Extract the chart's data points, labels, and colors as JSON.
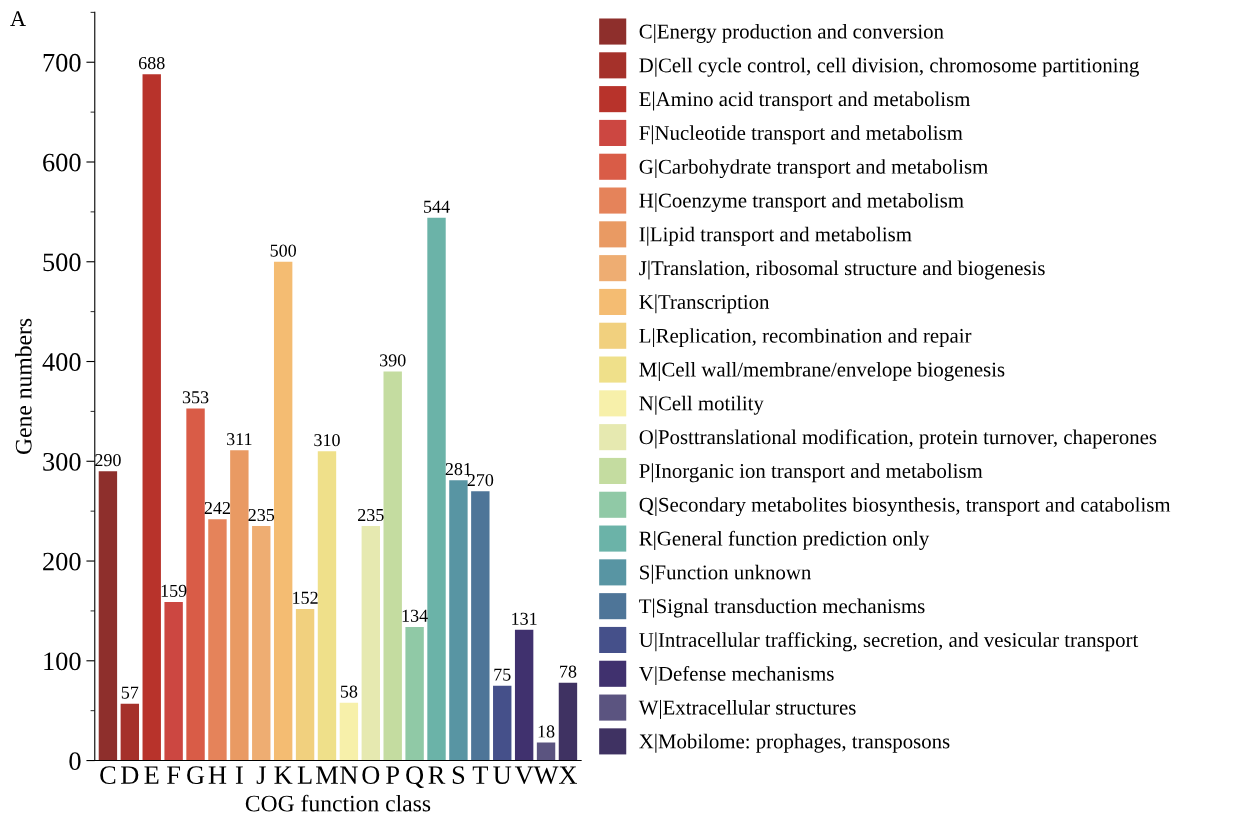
{
  "chart_data": {
    "type": "bar",
    "xlabel": "COG function class",
    "ylabel": "Gene numbers",
    "annotations": [
      "A"
    ],
    "categories": [
      "C",
      "D",
      "E",
      "F",
      "G",
      "H",
      "I",
      "J",
      "K",
      "L",
      "M",
      "N",
      "O",
      "P",
      "Q",
      "R",
      "S",
      "T",
      "U",
      "V",
      "W",
      "X"
    ],
    "series": [
      {
        "name": "C|Energy production and conversion",
        "color": "#8e2f2c",
        "values": [
          290,
          null,
          null,
          null,
          null,
          null,
          null,
          null,
          null,
          null,
          null,
          null,
          null,
          null,
          null,
          null,
          null,
          null,
          null,
          null,
          null,
          null
        ]
      },
      {
        "name": "D|Cell cycle control, cell division, chromosome partitioning",
        "color": "#a5312a",
        "values": [
          null,
          57,
          null,
          null,
          null,
          null,
          null,
          null,
          null,
          null,
          null,
          null,
          null,
          null,
          null,
          null,
          null,
          null,
          null,
          null,
          null,
          null
        ]
      },
      {
        "name": "E|Amino acid transport and metabolism",
        "color": "#b8332b",
        "values": [
          null,
          null,
          688,
          null,
          null,
          null,
          null,
          null,
          null,
          null,
          null,
          null,
          null,
          null,
          null,
          null,
          null,
          null,
          null,
          null,
          null,
          null
        ]
      },
      {
        "name": "F|Nucleotide transport and metabolism",
        "color": "#cc4741",
        "values": [
          null,
          null,
          null,
          159,
          null,
          null,
          null,
          null,
          null,
          null,
          null,
          null,
          null,
          null,
          null,
          null,
          null,
          null,
          null,
          null,
          null,
          null
        ]
      },
      {
        "name": "G|Carbohydrate transport and metabolism",
        "color": "#d95c47",
        "values": [
          null,
          null,
          null,
          null,
          353,
          null,
          null,
          null,
          null,
          null,
          null,
          null,
          null,
          null,
          null,
          null,
          null,
          null,
          null,
          null,
          null,
          null
        ]
      },
      {
        "name": "H|Coenzyme transport and metabolism",
        "color": "#e5835a",
        "values": [
          null,
          null,
          null,
          null,
          null,
          242,
          null,
          null,
          null,
          null,
          null,
          null,
          null,
          null,
          null,
          null,
          null,
          null,
          null,
          null,
          null,
          null
        ]
      },
      {
        "name": "I|Lipid transport and metabolism",
        "color": "#e99a63",
        "values": [
          null,
          null,
          null,
          null,
          null,
          null,
          311,
          null,
          null,
          null,
          null,
          null,
          null,
          null,
          null,
          null,
          null,
          null,
          null,
          null,
          null,
          null
        ]
      },
      {
        "name": "J|Translation, ribosomal structure and biogenesis",
        "color": "#eead72",
        "values": [
          null,
          null,
          null,
          null,
          null,
          null,
          null,
          235,
          null,
          null,
          null,
          null,
          null,
          null,
          null,
          null,
          null,
          null,
          null,
          null,
          null,
          null
        ]
      },
      {
        "name": "K|Transcription",
        "color": "#f4bc72",
        "values": [
          null,
          null,
          null,
          null,
          null,
          null,
          null,
          null,
          500,
          null,
          null,
          null,
          null,
          null,
          null,
          null,
          null,
          null,
          null,
          null,
          null,
          null
        ]
      },
      {
        "name": "L|Replication, recombination and repair",
        "color": "#f1d07e",
        "values": [
          null,
          null,
          null,
          null,
          null,
          null,
          null,
          null,
          null,
          152,
          null,
          null,
          null,
          null,
          null,
          null,
          null,
          null,
          null,
          null,
          null,
          null
        ]
      },
      {
        "name": "M|Cell wall/membrane/envelope biogenesis",
        "color": "#efe08a",
        "values": [
          null,
          null,
          null,
          null,
          null,
          null,
          null,
          null,
          null,
          null,
          310,
          null,
          null,
          null,
          null,
          null,
          null,
          null,
          null,
          null,
          null,
          null
        ]
      },
      {
        "name": "N|Cell motility",
        "color": "#f7f0aa",
        "values": [
          null,
          null,
          null,
          null,
          null,
          null,
          null,
          null,
          null,
          null,
          null,
          58,
          null,
          null,
          null,
          null,
          null,
          null,
          null,
          null,
          null,
          null
        ]
      },
      {
        "name": "O|Posttranslational modification, protein turnover, chaperones",
        "color": "#e6e9b0",
        "values": [
          null,
          null,
          null,
          null,
          null,
          null,
          null,
          null,
          null,
          null,
          null,
          null,
          235,
          null,
          null,
          null,
          null,
          null,
          null,
          null,
          null,
          null
        ]
      },
      {
        "name": "P|Inorganic ion transport and metabolism",
        "color": "#c4dca0",
        "values": [
          null,
          null,
          null,
          null,
          null,
          null,
          null,
          null,
          null,
          null,
          null,
          null,
          null,
          390,
          null,
          null,
          null,
          null,
          null,
          null,
          null,
          null
        ]
      },
      {
        "name": "Q|Secondary metabolites biosynthesis, transport and catabolism",
        "color": "#90c9a6",
        "values": [
          null,
          null,
          null,
          null,
          null,
          null,
          null,
          null,
          null,
          null,
          null,
          null,
          null,
          null,
          134,
          null,
          null,
          null,
          null,
          null,
          null,
          null
        ]
      },
      {
        "name": "R|General function prediction only",
        "color": "#6bb3a8",
        "values": [
          null,
          null,
          null,
          null,
          null,
          null,
          null,
          null,
          null,
          null,
          null,
          null,
          null,
          null,
          null,
          544,
          null,
          null,
          null,
          null,
          null,
          null
        ]
      },
      {
        "name": "S|Function unknown",
        "color": "#5895a3",
        "values": [
          null,
          null,
          null,
          null,
          null,
          null,
          null,
          null,
          null,
          null,
          null,
          null,
          null,
          null,
          null,
          null,
          281,
          null,
          null,
          null,
          null,
          null
        ]
      },
      {
        "name": "T|Signal transduction mechanisms",
        "color": "#4e7598",
        "values": [
          null,
          null,
          null,
          null,
          null,
          null,
          null,
          null,
          null,
          null,
          null,
          null,
          null,
          null,
          null,
          null,
          null,
          270,
          null,
          null,
          null,
          null
        ]
      },
      {
        "name": "U|Intracellular trafficking, secretion, and vesicular transport",
        "color": "#45508a",
        "values": [
          null,
          null,
          null,
          null,
          null,
          null,
          null,
          null,
          null,
          null,
          null,
          null,
          null,
          null,
          null,
          null,
          null,
          null,
          75,
          null,
          null,
          null
        ]
      },
      {
        "name": "V|Defense mechanisms",
        "color": "#40316e",
        "values": [
          null,
          null,
          null,
          null,
          null,
          null,
          null,
          null,
          null,
          null,
          null,
          null,
          null,
          null,
          null,
          null,
          null,
          null,
          null,
          131,
          null,
          null
        ]
      },
      {
        "name": "W|Extracellular structures",
        "color": "#5b5480",
        "values": [
          null,
          null,
          null,
          null,
          null,
          null,
          null,
          null,
          null,
          null,
          null,
          null,
          null,
          null,
          null,
          null,
          null,
          null,
          null,
          null,
          18,
          null
        ]
      },
      {
        "name": "X|Mobilome: prophages, transposons",
        "color": "#3f3262",
        "values": [
          null,
          null,
          null,
          null,
          null,
          null,
          null,
          null,
          null,
          null,
          null,
          null,
          null,
          null,
          null,
          null,
          null,
          null,
          null,
          null,
          null,
          78
        ]
      }
    ],
    "ylim": [
      0,
      750
    ],
    "yticks": [
      0,
      100,
      200,
      300,
      400,
      500,
      600,
      700
    ],
    "data_labels": true,
    "grid": false,
    "legend": "right"
  }
}
